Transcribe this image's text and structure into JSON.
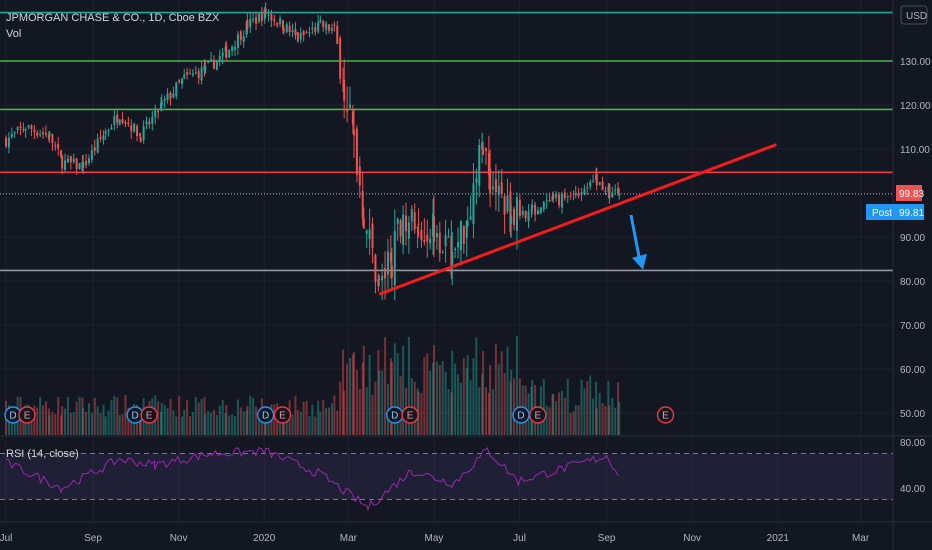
{
  "header": {
    "title": "JPMORGAN CHASE & CO., 1D, Cboe BZX",
    "vol_label": "Vol",
    "currency_badge": "USD"
  },
  "rsi": {
    "label": "RSI (14, close)",
    "ticks": [
      "80.00",
      "40.00"
    ]
  },
  "price_tags": {
    "last_value": "99.83",
    "last_color": "#ef5350",
    "post_label": "Post",
    "post_value": "99.81",
    "post_color": "#2196f3"
  },
  "colors": {
    "up": "#26a69a",
    "down": "#ef5350",
    "rsi_line": "#9c27b0",
    "trendline": "#f21c1c",
    "arrow": "#2196f3"
  },
  "chart_data": {
    "type": "candlestick",
    "title": "JPMORGAN CHASE & CO., 1D, Cboe BZX",
    "y_ticks": [
      130,
      120,
      110,
      90,
      80,
      70,
      60,
      50
    ],
    "y_tick_labels": [
      "130.00",
      "120.00",
      "110.00",
      "90.00",
      "80.00",
      "70.00",
      "60.00",
      "50.00"
    ],
    "ylim": [
      45,
      153
    ],
    "x_tick_labels": [
      "Jul",
      "Sep",
      "Nov",
      "2020",
      "Mar",
      "May",
      "Jul",
      "Sep",
      "Nov",
      "2021",
      "Mar"
    ],
    "horizontal_levels": [
      {
        "price": 141,
        "color": "#26a69a"
      },
      {
        "price": 130,
        "color": "#4caf50"
      },
      {
        "price": 119,
        "color": "#4caf50"
      },
      {
        "price": 104.7,
        "color": "#f23645"
      },
      {
        "price": 99.8,
        "color": "#b2b5be",
        "style": "dotted"
      },
      {
        "price": 82.4,
        "color": "#9598a1"
      }
    ],
    "trendline": {
      "start": {
        "date": "2020-03-23",
        "price": 77
      },
      "end": {
        "date": "2020-12-31",
        "price": 111
      }
    },
    "arrow": {
      "from_price": 95,
      "to_price": 83
    },
    "close_path": [
      [
        "2019-07-01",
        112
      ],
      [
        "2019-07-15",
        115
      ],
      [
        "2019-08-01",
        113
      ],
      [
        "2019-08-10",
        107
      ],
      [
        "2019-08-25",
        106
      ],
      [
        "2019-09-10",
        114
      ],
      [
        "2019-09-20",
        118
      ],
      [
        "2019-10-05",
        113
      ],
      [
        "2019-10-20",
        120
      ],
      [
        "2019-11-05",
        126
      ],
      [
        "2019-11-20",
        128
      ],
      [
        "2019-12-05",
        132
      ],
      [
        "2019-12-20",
        138
      ],
      [
        "2020-01-02",
        141
      ],
      [
        "2020-01-15",
        138
      ],
      [
        "2020-01-25",
        135
      ],
      [
        "2020-02-10",
        138
      ],
      [
        "2020-02-20",
        137
      ],
      [
        "2020-02-27",
        125
      ],
      [
        "2020-03-05",
        112
      ],
      [
        "2020-03-12",
        95
      ],
      [
        "2020-03-23",
        79
      ],
      [
        "2020-04-01",
        85
      ],
      [
        "2020-04-09",
        96
      ],
      [
        "2020-04-20",
        91
      ],
      [
        "2020-05-01",
        93
      ],
      [
        "2020-05-14",
        85
      ],
      [
        "2020-05-25",
        95
      ],
      [
        "2020-06-05",
        112
      ],
      [
        "2020-06-10",
        103
      ],
      [
        "2020-06-25",
        95
      ],
      [
        "2020-07-10",
        96
      ],
      [
        "2020-07-25",
        98
      ],
      [
        "2020-08-10",
        100
      ],
      [
        "2020-08-25",
        103
      ],
      [
        "2020-09-03",
        100
      ],
      [
        "2020-09-10",
        99.83
      ]
    ],
    "rsi_values": [
      [
        "2019-07-01",
        62
      ],
      [
        "2019-08-10",
        40
      ],
      [
        "2019-09-20",
        65
      ],
      [
        "2019-10-15",
        60
      ],
      [
        "2019-11-25",
        70
      ],
      [
        "2020-01-02",
        72
      ],
      [
        "2020-02-10",
        52
      ],
      [
        "2020-03-15",
        23
      ],
      [
        "2020-04-15",
        55
      ],
      [
        "2020-05-15",
        44
      ],
      [
        "2020-06-08",
        73
      ],
      [
        "2020-06-30",
        46
      ],
      [
        "2020-08-10",
        60
      ],
      [
        "2020-09-01",
        68
      ],
      [
        "2020-09-10",
        52
      ]
    ],
    "events": [
      {
        "date": "2019-07-06",
        "kind": "D"
      },
      {
        "date": "2019-07-16",
        "kind": "E"
      },
      {
        "date": "2019-10-01",
        "kind": "D"
      },
      {
        "date": "2019-10-11",
        "kind": "E"
      },
      {
        "date": "2020-01-02",
        "kind": "D"
      },
      {
        "date": "2020-01-14",
        "kind": "E"
      },
      {
        "date": "2020-04-03",
        "kind": "D"
      },
      {
        "date": "2020-04-14",
        "kind": "E"
      },
      {
        "date": "2020-07-02",
        "kind": "D"
      },
      {
        "date": "2020-07-14",
        "kind": "E"
      },
      {
        "date": "2020-10-13",
        "kind": "E"
      }
    ]
  }
}
